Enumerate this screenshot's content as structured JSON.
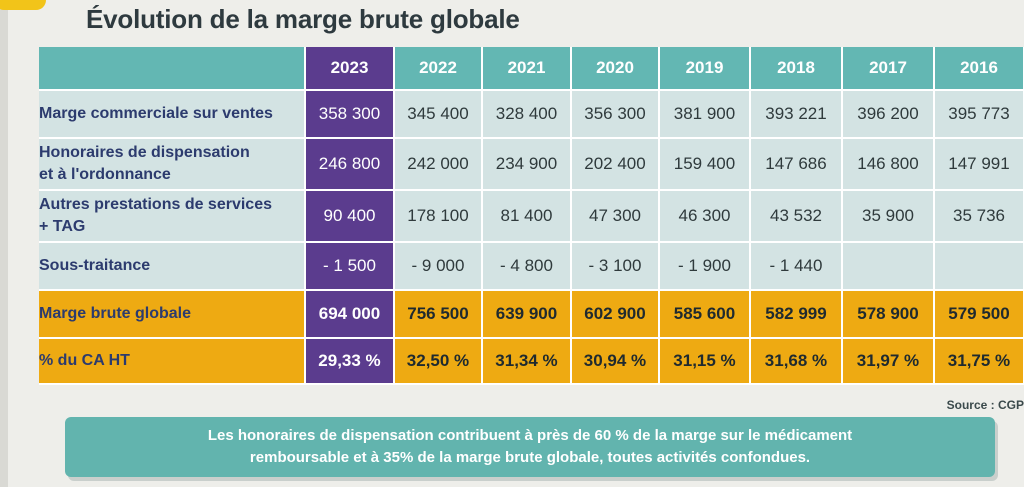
{
  "title": "Évolution de la marge brute globale",
  "table": {
    "years": [
      "2023",
      "2022",
      "2021",
      "2020",
      "2019",
      "2018",
      "2017",
      "2016"
    ],
    "rows": [
      {
        "label_lines": [
          "Marge commerciale sur ventes"
        ],
        "values": [
          "358 300",
          "345 400",
          "328 400",
          "356 300",
          "381 900",
          "393 221",
          "396 200",
          "395 773"
        ],
        "style": "body"
      },
      {
        "label_lines": [
          "Honoraires de dispensation",
          "et à l'ordonnance"
        ],
        "values": [
          "246 800",
          "242 000",
          "234 900",
          "202 400",
          "159 400",
          "147 686",
          "146 800",
          "147 991"
        ],
        "style": "body"
      },
      {
        "label_lines": [
          "Autres prestations de services",
          "+ TAG"
        ],
        "values": [
          "90 400",
          "178 100",
          "81 400",
          "47 300",
          "46 300",
          "43 532",
          "35 900",
          "35 736"
        ],
        "style": "body"
      },
      {
        "label_lines": [
          "Sous-traitance"
        ],
        "values": [
          "- 1 500",
          "- 9 000",
          "- 4 800",
          "- 3 100",
          "- 1 900",
          "- 1 440",
          "",
          ""
        ],
        "style": "body"
      },
      {
        "label_lines": [
          "Marge brute globale"
        ],
        "values": [
          "694 000",
          "756 500",
          "639 900",
          "602 900",
          "585 600",
          "582 999",
          "578 900",
          "579 500"
        ],
        "style": "gold"
      },
      {
        "label_lines": [
          "% du CA HT"
        ],
        "values": [
          "29,33 %",
          "32,50 %",
          "31,34 %",
          "30,94 %",
          "31,15 %",
          "31,68 %",
          "31,97 %",
          "31,75 %"
        ],
        "style": "gold"
      }
    ]
  },
  "source": "Source : CGP",
  "callout": {
    "line1": "Les honoraires de dispensation contribuent à près de 60 % de la marge sur le médicament",
    "line2": "remboursable et à 35% de la marge brute globale, toutes activités confondues."
  },
  "colors": {
    "current_year": "#5b3c8e",
    "header_teal": "#63b7b3",
    "row_bg": "#d3e3e3",
    "highlight_gold": "#eeaa12"
  }
}
